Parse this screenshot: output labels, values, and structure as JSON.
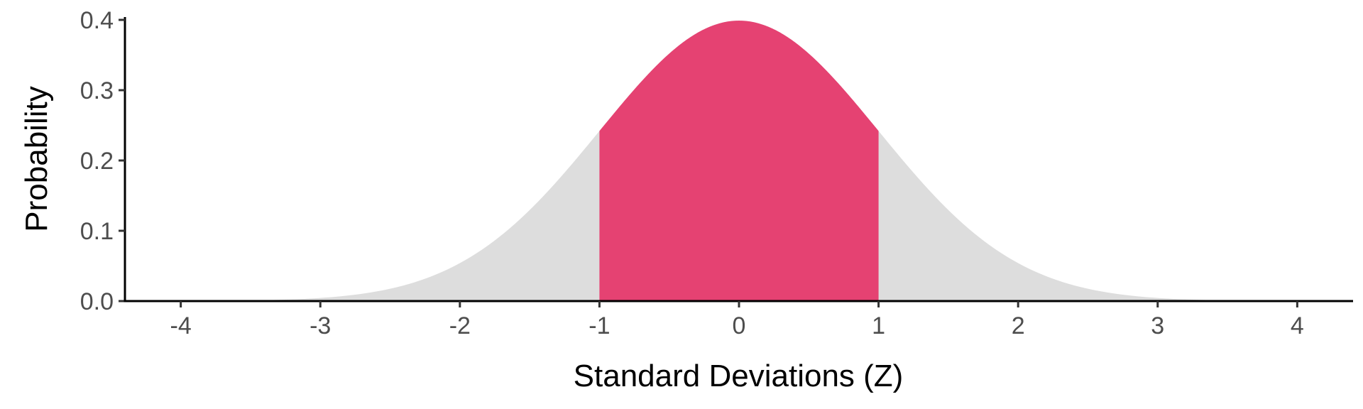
{
  "chart_data": {
    "type": "area",
    "title": "",
    "xlabel": "Standard Deviations (Z)",
    "ylabel": "Probability",
    "xlim": [
      -4.4,
      4.4
    ],
    "ylim": [
      0,
      0.4
    ],
    "x_ticks": [
      "-4",
      "-3",
      "-2",
      "-1",
      "0",
      "1",
      "2",
      "3",
      "4"
    ],
    "y_ticks": [
      "0.0",
      "0.1",
      "0.2",
      "0.3",
      "0.4"
    ],
    "grid": false,
    "series": [
      {
        "distribution": "standard normal",
        "mean": 0,
        "sd": 1,
        "x_range": [
          -4,
          4
        ],
        "color": "#dddddd"
      },
      {
        "distribution": "standard normal",
        "mean": 0,
        "sd": 1,
        "x_range": [
          -1,
          1
        ],
        "color": "#e54272"
      }
    ],
    "sample_x": [
      -4,
      -3,
      -2,
      -1,
      0,
      1,
      2,
      3,
      4
    ],
    "sample_y": [
      0.0001,
      0.0044,
      0.054,
      0.242,
      0.399,
      0.242,
      0.054,
      0.0044,
      0.0001
    ],
    "axis_color": "#000000",
    "tick_text_color": "#4d4d4d"
  }
}
